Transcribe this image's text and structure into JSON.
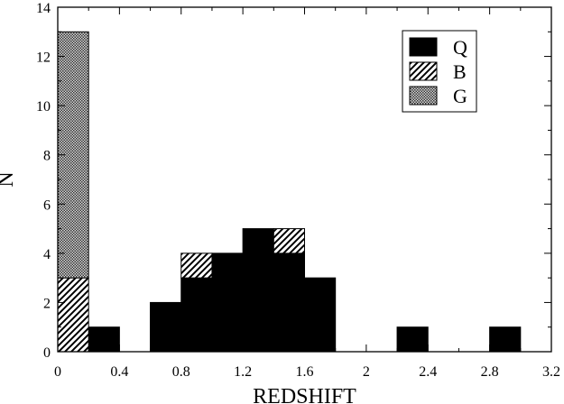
{
  "chart_data": {
    "type": "bar",
    "stacked": true,
    "xlabel": "REDSHIFT",
    "ylabel": "N",
    "xlim": [
      0,
      3.2
    ],
    "ylim": [
      0,
      14
    ],
    "x_ticks": [
      "0",
      "0.4",
      "0.8",
      "1.2",
      "1.6",
      "2",
      "2.4",
      "2.8",
      "3.2"
    ],
    "y_ticks": [
      "0",
      "2",
      "4",
      "6",
      "8",
      "10",
      "12",
      "14"
    ],
    "grid": false,
    "legend_position": "top-right",
    "bin_width": 0.2,
    "bin_starts": [
      0.0,
      0.2,
      0.4,
      0.6,
      0.8,
      1.0,
      1.2,
      1.4,
      1.6,
      1.8,
      2.0,
      2.2,
      2.4,
      2.6,
      2.8
    ],
    "series": [
      {
        "name": "Q",
        "fill": "solid",
        "color": "#000000",
        "values": [
          0,
          1,
          0,
          2,
          3,
          4,
          5,
          4,
          3,
          0,
          0,
          1,
          0,
          0,
          1
        ]
      },
      {
        "name": "B",
        "fill": "hatch",
        "color": "#000000",
        "values": [
          3,
          0,
          0,
          0,
          1,
          0,
          0,
          1,
          0,
          0,
          0,
          0,
          0,
          0,
          0
        ]
      },
      {
        "name": "G",
        "fill": "dots",
        "color": "#555555",
        "values": [
          10,
          0,
          0,
          0,
          0,
          0,
          0,
          0,
          0,
          0,
          0,
          0,
          0,
          0,
          0
        ]
      }
    ]
  }
}
